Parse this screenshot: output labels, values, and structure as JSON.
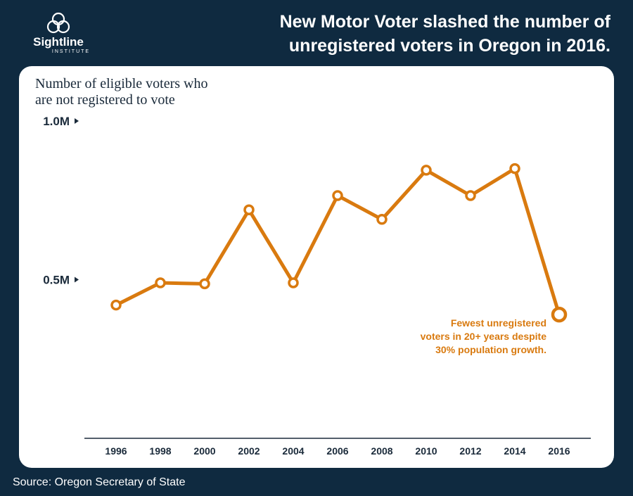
{
  "header": {
    "logo_name": "Sightline",
    "logo_sub": "INSTITUTE",
    "headline_line1": "New Motor Voter slashed the number of",
    "headline_line2": "unregistered voters in Oregon in 2016."
  },
  "footer": {
    "source": "Source: Oregon Secretary of State"
  },
  "colors": {
    "background": "#0f2a40",
    "card": "#ffffff",
    "series": "#d97a0f",
    "axis": "#1a2a3a"
  },
  "chart_data": {
    "type": "line",
    "title": "New Motor Voter slashed the number of unregistered voters in Oregon in 2016.",
    "ylabel_line1": "Number of eligible voters who",
    "ylabel_line2": "are not registered to vote",
    "xlabel": "",
    "x": [
      "1996",
      "1998",
      "2000",
      "2002",
      "2004",
      "2006",
      "2008",
      "2010",
      "2012",
      "2014",
      "2016"
    ],
    "series": [
      {
        "values": [
          0.42,
          0.49,
          0.487,
          0.72,
          0.49,
          0.765,
          0.69,
          0.845,
          0.765,
          0.85,
          0.39
        ]
      }
    ],
    "ylim": [
      0,
      1.0
    ],
    "y_ticks": [
      {
        "value": 0.5,
        "label": "0.5M"
      },
      {
        "value": 1.0,
        "label": "1.0M"
      }
    ],
    "grid": false,
    "annotation": {
      "line1": "Fewest unregistered",
      "line2": "voters in 20+ years despite",
      "line3": "30% population growth."
    }
  }
}
